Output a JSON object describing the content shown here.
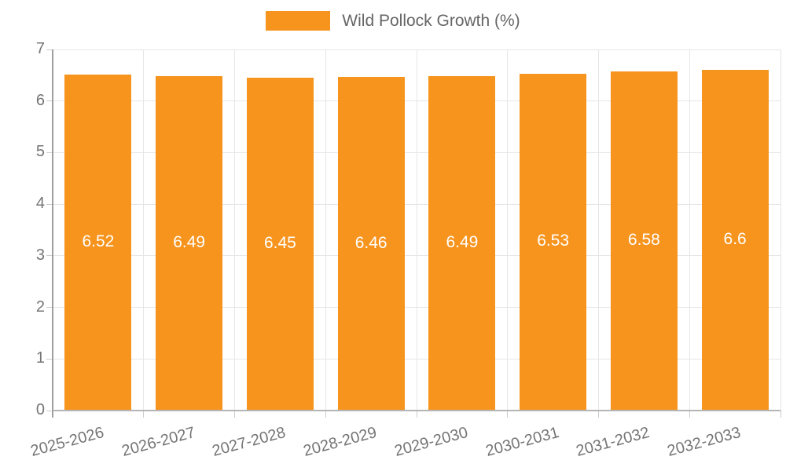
{
  "legend": {
    "label": "Wild Pollock Growth (%)",
    "color": "#f7941e"
  },
  "colors": {
    "bar": "#f7941e",
    "axis_text": "#757575",
    "legend_text": "#666666",
    "gridline": "#e6e6e6",
    "axis_line": "#9e9e9e",
    "bar_value_text": "#ffffff"
  },
  "chart_data": {
    "type": "bar",
    "title": "",
    "xlabel": "",
    "ylabel": "",
    "categories": [
      "2025-2026",
      "2026-2027",
      "2027-2028",
      "2028-2029",
      "2029-2030",
      "2030-2031",
      "2031-2032",
      "2032-2033"
    ],
    "series": [
      {
        "name": "Wild Pollock Growth (%)",
        "color": "#f7941e",
        "values": [
          6.52,
          6.49,
          6.45,
          6.46,
          6.49,
          6.53,
          6.58,
          6.6
        ]
      }
    ],
    "bar_value_labels": [
      "6.52",
      "6.49",
      "6.45",
      "6.46",
      "6.49",
      "6.53",
      "6.58",
      "6.6"
    ],
    "ylim": [
      0,
      7
    ],
    "yticks": [
      0,
      1,
      2,
      3,
      4,
      5,
      6,
      7
    ],
    "grid": true,
    "legend_position": "top-center",
    "x_label_rotation_deg": -15
  }
}
